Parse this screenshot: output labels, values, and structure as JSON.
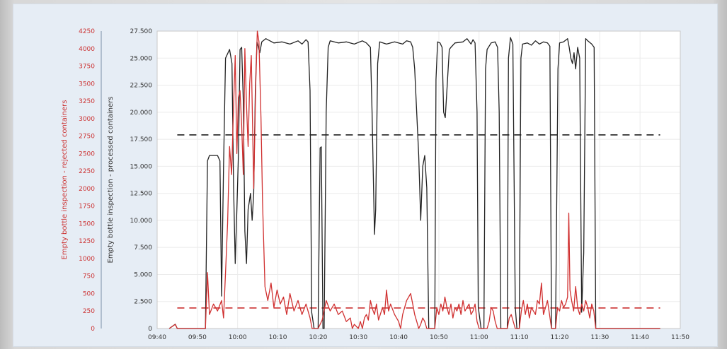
{
  "chart_data": {
    "type": "line",
    "title": "",
    "x_axis": {
      "ticks": [
        "09:40",
        "09:50",
        "10:00",
        "10:10",
        "10:20",
        "10:30",
        "10:40",
        "10:50",
        "11:00",
        "11:10",
        "11:20",
        "11:30",
        "11:40",
        "11:50"
      ],
      "range_minutes": [
        0,
        130
      ]
    },
    "y_left": {
      "label": "Empty bottle inspection - rejected containers",
      "color": "#cc3333",
      "range": [
        0,
        4250
      ],
      "ticks": [
        "0",
        "250",
        "500",
        "750",
        "1000",
        "1250",
        "1500",
        "1750",
        "2000",
        "2250",
        "2500",
        "2750",
        "3000",
        "3250",
        "3500",
        "3750",
        "4000",
        "4250"
      ]
    },
    "y_right": {
      "label": "Empty bottle inspection - processed containers",
      "color": "#333333",
      "range": [
        0,
        27500
      ],
      "ticks": [
        "0",
        "2.500",
        "5.000",
        "7.500",
        "10.000",
        "12.500",
        "15.000",
        "17.500",
        "20.000",
        "22.500",
        "25.000",
        "27.500"
      ]
    },
    "grid": true,
    "series": [
      {
        "axis": "right",
        "color": "#222222",
        "points": [
          [
            3,
            0
          ],
          [
            4.5,
            400
          ],
          [
            5,
            0
          ],
          [
            12,
            0
          ],
          [
            12.5,
            15500
          ],
          [
            13,
            16000
          ],
          [
            15,
            16000
          ],
          [
            15.6,
            15500
          ],
          [
            16,
            3000
          ],
          [
            16.5,
            15000
          ],
          [
            17,
            25000
          ],
          [
            18,
            25800
          ],
          [
            18.6,
            24500
          ],
          [
            19,
            13000
          ],
          [
            19.4,
            6000
          ],
          [
            19.8,
            11000
          ],
          [
            20.2,
            16000
          ],
          [
            20.6,
            25800
          ],
          [
            21,
            26000
          ],
          [
            21.4,
            21000
          ],
          [
            21.8,
            9000
          ],
          [
            22.2,
            6000
          ],
          [
            22.6,
            11000
          ],
          [
            23.2,
            12500
          ],
          [
            23.6,
            10000
          ],
          [
            24,
            12500
          ],
          [
            24.4,
            22000
          ],
          [
            24.8,
            26500
          ],
          [
            25.5,
            25500
          ],
          [
            26,
            26500
          ],
          [
            27,
            26800
          ],
          [
            29,
            26400
          ],
          [
            31,
            26500
          ],
          [
            33,
            26300
          ],
          [
            35,
            26600
          ],
          [
            36,
            26300
          ],
          [
            37,
            26700
          ],
          [
            37.5,
            26500
          ],
          [
            38,
            22000
          ],
          [
            38.4,
            1500
          ],
          [
            39,
            0
          ],
          [
            40,
            0
          ],
          [
            40.5,
            16700
          ],
          [
            40.8,
            16800
          ],
          [
            41.2,
            0
          ],
          [
            41.5,
            0
          ],
          [
            42,
            20000
          ],
          [
            42.5,
            26000
          ],
          [
            43,
            26600
          ],
          [
            45,
            26400
          ],
          [
            47,
            26500
          ],
          [
            49,
            26300
          ],
          [
            51,
            26600
          ],
          [
            52,
            26400
          ],
          [
            53,
            26000
          ],
          [
            53.4,
            20000
          ],
          [
            54,
            8700
          ],
          [
            54.3,
            11000
          ],
          [
            54.8,
            24500
          ],
          [
            55.3,
            26500
          ],
          [
            57,
            26300
          ],
          [
            59,
            26500
          ],
          [
            61,
            26300
          ],
          [
            62,
            26600
          ],
          [
            63,
            26500
          ],
          [
            63.5,
            26000
          ],
          [
            64,
            24000
          ],
          [
            65,
            16000
          ],
          [
            65.5,
            10000
          ],
          [
            66,
            15000
          ],
          [
            66.5,
            16000
          ],
          [
            67,
            13000
          ],
          [
            67.5,
            0
          ],
          [
            68,
            0
          ],
          [
            69,
            0
          ],
          [
            69.3,
            23000
          ],
          [
            69.7,
            26500
          ],
          [
            70.3,
            26400
          ],
          [
            70.8,
            26000
          ],
          [
            71.2,
            20000
          ],
          [
            71.6,
            19500
          ],
          [
            72,
            22000
          ],
          [
            72.6,
            25800
          ],
          [
            73,
            26000
          ],
          [
            74,
            26400
          ],
          [
            76,
            26500
          ],
          [
            77,
            26800
          ],
          [
            78,
            26300
          ],
          [
            78.5,
            26700
          ],
          [
            79,
            26400
          ],
          [
            79.5,
            20000
          ],
          [
            79.8,
            2000
          ],
          [
            80.5,
            0
          ],
          [
            81.2,
            0
          ],
          [
            81.6,
            24000
          ],
          [
            82,
            25800
          ],
          [
            83,
            26400
          ],
          [
            84,
            26500
          ],
          [
            84.6,
            26000
          ],
          [
            85,
            20000
          ],
          [
            85.4,
            0
          ],
          [
            86,
            0
          ],
          [
            87,
            0
          ],
          [
            87.3,
            25000
          ],
          [
            87.8,
            26900
          ],
          [
            88.4,
            26300
          ],
          [
            89,
            2000
          ],
          [
            89.4,
            0
          ],
          [
            90,
            0
          ],
          [
            90.4,
            25000
          ],
          [
            90.8,
            26300
          ],
          [
            92,
            26400
          ],
          [
            93,
            26200
          ],
          [
            94,
            26600
          ],
          [
            95,
            26300
          ],
          [
            96,
            26500
          ],
          [
            97,
            26400
          ],
          [
            97.6,
            26100
          ],
          [
            98,
            0
          ],
          [
            99,
            0
          ],
          [
            99.6,
            24000
          ],
          [
            100,
            26400
          ],
          [
            101,
            26500
          ],
          [
            102,
            26800
          ],
          [
            102.4,
            26000
          ],
          [
            102.8,
            25000
          ],
          [
            103.2,
            24500
          ],
          [
            103.6,
            25500
          ],
          [
            104,
            24000
          ],
          [
            104.5,
            26000
          ],
          [
            105,
            25000
          ],
          [
            105.5,
            1500
          ],
          [
            106,
            7000
          ],
          [
            106.5,
            26800
          ],
          [
            107,
            26600
          ],
          [
            108,
            26300
          ],
          [
            108.6,
            26000
          ],
          [
            109,
            0
          ],
          [
            113,
            0
          ],
          [
            125,
            0
          ]
        ]
      },
      {
        "axis": "left",
        "color": "#d03030",
        "points": [
          [
            3,
            0
          ],
          [
            4.5,
            60
          ],
          [
            5,
            0
          ],
          [
            12,
            0
          ],
          [
            12.5,
            800
          ],
          [
            13,
            200
          ],
          [
            14,
            350
          ],
          [
            15,
            250
          ],
          [
            16,
            400
          ],
          [
            16.5,
            150
          ],
          [
            17,
            800
          ],
          [
            17.5,
            1500
          ],
          [
            18,
            2600
          ],
          [
            18.5,
            2200
          ],
          [
            19,
            3200
          ],
          [
            19.4,
            3900
          ],
          [
            19.8,
            2500
          ],
          [
            20.2,
            3300
          ],
          [
            20.6,
            3400
          ],
          [
            21,
            2900
          ],
          [
            21.4,
            2200
          ],
          [
            21.8,
            4000
          ],
          [
            22.2,
            3200
          ],
          [
            22.6,
            2600
          ],
          [
            23,
            3500
          ],
          [
            23.4,
            3900
          ],
          [
            24,
            2000
          ],
          [
            24.5,
            3500
          ],
          [
            24.9,
            4250
          ],
          [
            25.3,
            4100
          ],
          [
            25.8,
            3000
          ],
          [
            26.2,
            1800
          ],
          [
            26.8,
            600
          ],
          [
            27.5,
            400
          ],
          [
            28.3,
            650
          ],
          [
            29,
            300
          ],
          [
            29.8,
            550
          ],
          [
            30.6,
            350
          ],
          [
            31.4,
            450
          ],
          [
            32.2,
            200
          ],
          [
            33,
            500
          ],
          [
            34,
            250
          ],
          [
            35,
            400
          ],
          [
            36,
            200
          ],
          [
            37,
            350
          ],
          [
            38,
            150
          ],
          [
            38.5,
            0
          ],
          [
            40,
            0
          ],
          [
            41,
            120
          ],
          [
            42,
            400
          ],
          [
            43,
            250
          ],
          [
            44,
            350
          ],
          [
            45,
            200
          ],
          [
            46,
            250
          ],
          [
            47,
            100
          ],
          [
            48,
            150
          ],
          [
            48.5,
            0
          ],
          [
            49,
            60
          ],
          [
            50,
            0
          ],
          [
            50.5,
            100
          ],
          [
            51,
            0
          ],
          [
            51.5,
            150
          ],
          [
            52,
            200
          ],
          [
            52.5,
            120
          ],
          [
            53,
            400
          ],
          [
            53.5,
            280
          ],
          [
            54,
            200
          ],
          [
            54.5,
            350
          ],
          [
            55,
            120
          ],
          [
            56,
            300
          ],
          [
            56.5,
            200
          ],
          [
            57,
            550
          ],
          [
            57.5,
            250
          ],
          [
            58,
            350
          ],
          [
            59,
            200
          ],
          [
            60,
            100
          ],
          [
            60.5,
            0
          ],
          [
            61,
            200
          ],
          [
            62,
            400
          ],
          [
            63,
            500
          ],
          [
            63.5,
            350
          ],
          [
            64,
            200
          ],
          [
            64.5,
            100
          ],
          [
            65,
            0
          ],
          [
            65.5,
            60
          ],
          [
            66,
            150
          ],
          [
            66.5,
            100
          ],
          [
            67,
            0
          ],
          [
            69,
            0
          ],
          [
            69.5,
            300
          ],
          [
            70,
            200
          ],
          [
            70.5,
            350
          ],
          [
            71,
            250
          ],
          [
            71.5,
            450
          ],
          [
            72,
            300
          ],
          [
            72.5,
            200
          ],
          [
            73,
            350
          ],
          [
            73.5,
            150
          ],
          [
            74,
            300
          ],
          [
            74.5,
            250
          ],
          [
            75,
            350
          ],
          [
            75.5,
            200
          ],
          [
            76,
            400
          ],
          [
            76.5,
            250
          ],
          [
            77,
            300
          ],
          [
            77.5,
            350
          ],
          [
            78,
            200
          ],
          [
            78.5,
            250
          ],
          [
            79,
            350
          ],
          [
            79.5,
            100
          ],
          [
            80,
            0
          ],
          [
            82,
            0
          ],
          [
            82.5,
            100
          ],
          [
            83,
            300
          ],
          [
            83.5,
            250
          ],
          [
            84,
            100
          ],
          [
            84.5,
            0
          ],
          [
            85,
            0
          ],
          [
            87,
            0
          ],
          [
            87.5,
            150
          ],
          [
            88,
            200
          ],
          [
            89,
            0
          ],
          [
            90,
            0
          ],
          [
            90.5,
            250
          ],
          [
            91,
            400
          ],
          [
            91.5,
            200
          ],
          [
            92,
            350
          ],
          [
            92.5,
            150
          ],
          [
            93,
            300
          ],
          [
            93.5,
            250
          ],
          [
            94,
            200
          ],
          [
            94.5,
            400
          ],
          [
            95,
            350
          ],
          [
            95.5,
            650
          ],
          [
            96,
            200
          ],
          [
            96.5,
            300
          ],
          [
            97,
            400
          ],
          [
            97.5,
            200
          ],
          [
            98,
            0
          ],
          [
            99,
            0
          ],
          [
            99.5,
            300
          ],
          [
            100,
            250
          ],
          [
            100.5,
            400
          ],
          [
            101,
            300
          ],
          [
            101.5,
            350
          ],
          [
            102,
            450
          ],
          [
            102.3,
            1650
          ],
          [
            102.6,
            550
          ],
          [
            103,
            400
          ],
          [
            103.5,
            250
          ],
          [
            104,
            600
          ],
          [
            104.5,
            300
          ],
          [
            105,
            200
          ],
          [
            105.5,
            350
          ],
          [
            106,
            250
          ],
          [
            106.5,
            400
          ],
          [
            107,
            300
          ],
          [
            107.5,
            150
          ],
          [
            108,
            350
          ],
          [
            108.5,
            250
          ],
          [
            109,
            0
          ],
          [
            113,
            0
          ],
          [
            125,
            0
          ]
        ]
      }
    ],
    "reference_lines": [
      {
        "axis": "right",
        "value": 17900,
        "x_range": [
          5,
          125
        ],
        "color": "#222222",
        "dash": true
      },
      {
        "axis": "right",
        "value": 1900,
        "x_range": [
          5,
          125
        ],
        "color": "#cc3333",
        "dash": true
      }
    ]
  }
}
